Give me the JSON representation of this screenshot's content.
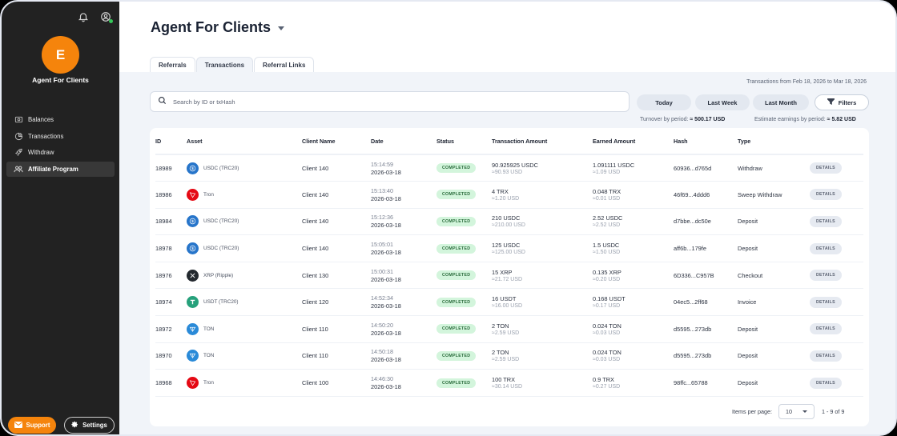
{
  "sidebar": {
    "avatar_initial": "E",
    "agent_name": "Agent For Clients",
    "nav": [
      {
        "label": "Balances",
        "icon": "wallet-icon",
        "active": false
      },
      {
        "label": "Transactions",
        "icon": "pie-chart-icon",
        "active": false
      },
      {
        "label": "Withdraw",
        "icon": "rocket-icon",
        "active": false
      },
      {
        "label": "Affiliate Program",
        "icon": "users-icon",
        "active": true
      }
    ],
    "support_label": "Support",
    "settings_label": "Settings"
  },
  "header": {
    "title": "Agent For Clients",
    "tabs": [
      {
        "label": "Referrals",
        "active": false
      },
      {
        "label": "Transactions",
        "active": true
      },
      {
        "label": "Referral Links",
        "active": false
      }
    ]
  },
  "toolbar": {
    "date_range": "Transactions from Feb 18, 2026 to Mar 18, 2026",
    "search_placeholder": "Search by ID or txHash",
    "period_buttons": [
      "Today",
      "Last Week",
      "Last Month"
    ],
    "filters_label": "Filters",
    "turnover_label": "Turnover by period:",
    "turnover_value": "≈ 500.17 USD",
    "earnings_label": "Estimate earnings by period:",
    "earnings_value": "≈ 5.82 USD"
  },
  "table": {
    "columns": [
      "ID",
      "Asset",
      "Client Name",
      "Date",
      "Status",
      "Transaction Amount",
      "Earned Amount",
      "Hash",
      "Type",
      ""
    ],
    "details_label": "DETAILS",
    "rows": [
      {
        "id": "18989",
        "asset": "USDC (TRC20)",
        "coin": "usdc",
        "client": "Client 140",
        "time": "15:14:59",
        "date": "2026-03-18",
        "status": "COMPLETED",
        "tx_amount": "90.925925 USDC",
        "tx_usd": "≈90.93 USD",
        "earned": "1.091111 USDC",
        "earned_usd": "≈1.09 USD",
        "hash": "60936...d765d",
        "type": "Withdraw"
      },
      {
        "id": "18986",
        "asset": "Tron",
        "coin": "tron",
        "client": "Client 140",
        "time": "15:13:40",
        "date": "2026-03-18",
        "status": "COMPLETED",
        "tx_amount": "4 TRX",
        "tx_usd": "≈1.20 USD",
        "earned": "0.048 TRX",
        "earned_usd": "≈0.01 USD",
        "hash": "46f69...4ddd6",
        "type": "Sweep Withdraw"
      },
      {
        "id": "18984",
        "asset": "USDC (TRC20)",
        "coin": "usdc",
        "client": "Client 140",
        "time": "15:12:36",
        "date": "2026-03-18",
        "status": "COMPLETED",
        "tx_amount": "210 USDC",
        "tx_usd": "≈210.00 USD",
        "earned": "2.52 USDC",
        "earned_usd": "≈2.52 USD",
        "hash": "d7bbe...dc50e",
        "type": "Deposit"
      },
      {
        "id": "18978",
        "asset": "USDC (TRC20)",
        "coin": "usdc",
        "client": "Client 140",
        "time": "15:05:01",
        "date": "2026-03-18",
        "status": "COMPLETED",
        "tx_amount": "125 USDC",
        "tx_usd": "≈125.00 USD",
        "earned": "1.5 USDC",
        "earned_usd": "≈1.50 USD",
        "hash": "aff6b...179fe",
        "type": "Deposit"
      },
      {
        "id": "18976",
        "asset": "XRP (Ripple)",
        "coin": "xrp",
        "client": "Client 130",
        "time": "15:00:31",
        "date": "2026-03-18",
        "status": "COMPLETED",
        "tx_amount": "15 XRP",
        "tx_usd": "≈21.72 USD",
        "earned": "0.135 XRP",
        "earned_usd": "≈0.20 USD",
        "hash": "6D336...C957B",
        "type": "Checkout"
      },
      {
        "id": "18974",
        "asset": "USDT (TRC20)",
        "coin": "usdt",
        "client": "Client 120",
        "time": "14:52:34",
        "date": "2026-03-18",
        "status": "COMPLETED",
        "tx_amount": "16 USDT",
        "tx_usd": "≈16.00 USD",
        "earned": "0.168 USDT",
        "earned_usd": "≈0.17 USD",
        "hash": "04ec5...2ff68",
        "type": "Invoice"
      },
      {
        "id": "18972",
        "asset": "TON",
        "coin": "ton",
        "client": "Client 110",
        "time": "14:50:20",
        "date": "2026-03-18",
        "status": "COMPLETED",
        "tx_amount": "2 TON",
        "tx_usd": "≈2.59 USD",
        "earned": "0.024 TON",
        "earned_usd": "≈0.03 USD",
        "hash": "d5595...273db",
        "type": "Deposit"
      },
      {
        "id": "18970",
        "asset": "TON",
        "coin": "ton",
        "client": "Client 110",
        "time": "14:50:18",
        "date": "2026-03-18",
        "status": "COMPLETED",
        "tx_amount": "2 TON",
        "tx_usd": "≈2.59 USD",
        "earned": "0.024 TON",
        "earned_usd": "≈0.03 USD",
        "hash": "d5595...273db",
        "type": "Deposit"
      },
      {
        "id": "18968",
        "asset": "Tron",
        "coin": "tron",
        "client": "Client 100",
        "time": "14:46:30",
        "date": "2026-03-18",
        "status": "COMPLETED",
        "tx_amount": "100 TRX",
        "tx_usd": "≈30.14 USD",
        "earned": "0.9 TRX",
        "earned_usd": "≈0.27 USD",
        "hash": "98ffc...65788",
        "type": "Deposit"
      }
    ]
  },
  "pagination": {
    "items_per_page_label": "Items per page:",
    "items_per_page": "10",
    "range": "1 - 9 of 9"
  },
  "colors": {
    "accent": "#f5840c",
    "sidebar_bg": "#222222",
    "status_completed_bg": "#d3f5dc",
    "usdc": "#2775ca",
    "tron": "#e50914",
    "xrp": "#23292f",
    "usdt": "#26a17b",
    "ton": "#2a8ad8"
  }
}
